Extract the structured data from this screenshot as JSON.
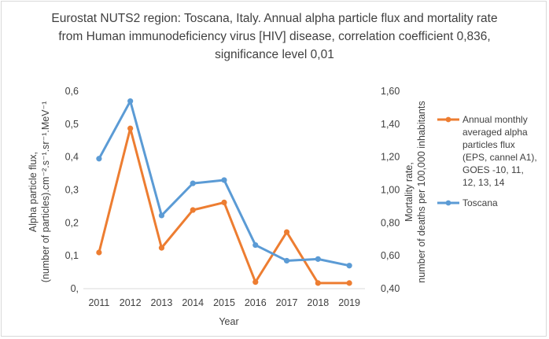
{
  "chart_data": {
    "type": "line",
    "title_lines": [
      "Eurostat NUTS2 region: Toscana, Italy. Annual alpha particle flux and mortality rate",
      "from Human immunodeficiency  virus [HIV] disease, correlation coefficient 0,836,",
      "significance level 0,01"
    ],
    "x_title": "Year",
    "y_left_title_lines": [
      "Alpha particle flux,",
      "(number of particles).cm⁻².s⁻¹.sr⁻¹.MeV⁻¹"
    ],
    "y_right_title_lines": [
      "Mortality rate,",
      "number of deaths per 100,000 inhabitants"
    ],
    "categories": [
      "2011",
      "2012",
      "2013",
      "2014",
      "2015",
      "2016",
      "2017",
      "2018",
      "2019"
    ],
    "y_left_ticks": [
      "0,",
      "0,1",
      "0,2",
      "0,3",
      "0,4",
      "0,5",
      "0,6"
    ],
    "y_left_range": [
      0,
      0.6
    ],
    "y_right_ticks": [
      "0,40",
      "0,60",
      "0,80",
      "1,00",
      "1,20",
      "1,40",
      "1,60"
    ],
    "y_right_range": [
      0.4,
      1.6
    ],
    "series": [
      {
        "name": "Annual monthly averaged alpha particles flux (EPS, cannel A1), GOES -10, 11, 12, 13, 14",
        "legend_lines": [
          "Annual monthly",
          "averaged alpha",
          "particles flux",
          "(EPS, cannel A1),",
          "GOES -10, 11,",
          "12, 13, 14"
        ],
        "axis": "left",
        "color": "#ed7d31",
        "values": [
          0.11,
          0.487,
          0.124,
          0.239,
          0.262,
          0.02,
          0.172,
          0.017,
          0.017
        ]
      },
      {
        "name": "Toscana",
        "legend_lines": [
          "Toscana"
        ],
        "axis": "right",
        "color": "#5b9bd5",
        "values": [
          1.19,
          1.54,
          0.845,
          1.04,
          1.06,
          0.665,
          0.57,
          0.58,
          0.54
        ]
      }
    ],
    "grid": false,
    "legend_position": "right"
  }
}
